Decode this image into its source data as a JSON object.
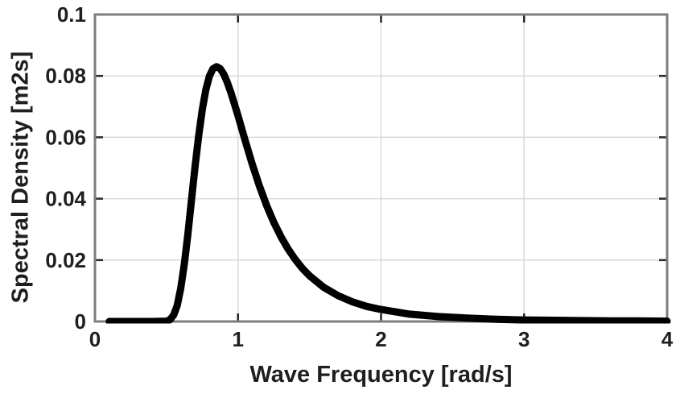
{
  "style": {
    "background": "#ffffff",
    "axis_box_color": "#7d7d7d",
    "grid_color": "#d9d9d9",
    "tick_color": "#262626",
    "text_color": "#1f1f1f",
    "curve_color": "#000000"
  },
  "chart_data": {
    "type": "line",
    "title": "",
    "xlabel": "Wave Frequency [rad/s]",
    "ylabel": "Spectral Density [m2s]",
    "xlim": [
      0,
      4
    ],
    "ylim": [
      0,
      0.1
    ],
    "x_ticks": [
      0,
      1,
      2,
      3,
      4
    ],
    "x_tick_labels": [
      "0",
      "1",
      "2",
      "3",
      "4"
    ],
    "y_ticks": [
      0,
      0.02,
      0.04,
      0.06,
      0.08,
      0.1
    ],
    "y_tick_labels": [
      "0",
      "0.02",
      "0.04",
      "0.06",
      "0.08",
      "0.1"
    ],
    "grid": true,
    "legend": null,
    "peak": {
      "x": 0.85,
      "y": 0.083
    },
    "series": [
      {
        "name": "wave-spectral-density",
        "x": [
          0.1,
          0.2,
          0.3,
          0.4,
          0.5,
          0.525,
          0.55,
          0.575,
          0.6,
          0.625,
          0.65,
          0.675,
          0.7,
          0.725,
          0.75,
          0.775,
          0.8,
          0.825,
          0.85,
          0.875,
          0.9,
          0.925,
          0.95,
          1.0,
          1.05,
          1.1,
          1.15,
          1.2,
          1.25,
          1.3,
          1.35,
          1.4,
          1.45,
          1.5,
          1.6,
          1.7,
          1.8,
          1.9,
          2.0,
          2.2,
          2.4,
          2.6,
          2.8,
          3.0,
          3.2,
          3.4,
          3.6,
          3.8,
          4.0
        ],
        "y": [
          0.0,
          0.0,
          0.0,
          0.0,
          0.0001,
          0.0006,
          0.0021,
          0.0052,
          0.0108,
          0.0188,
          0.0285,
          0.0397,
          0.0505,
          0.0605,
          0.0689,
          0.0755,
          0.0799,
          0.0823,
          0.083,
          0.0824,
          0.0806,
          0.0779,
          0.0746,
          0.067,
          0.059,
          0.0512,
          0.0441,
          0.0378,
          0.0323,
          0.0276,
          0.0236,
          0.0202,
          0.0173,
          0.0149,
          0.0111,
          0.0084,
          0.0064,
          0.0049,
          0.0039,
          0.0024,
          0.0016,
          0.0011,
          0.0007,
          0.0005,
          0.0004,
          0.0003,
          0.0002,
          0.0002,
          0.0001
        ]
      }
    ]
  }
}
